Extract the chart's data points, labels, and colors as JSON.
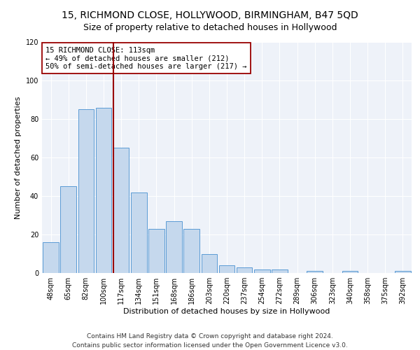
{
  "title": "15, RICHMOND CLOSE, HOLLYWOOD, BIRMINGHAM, B47 5QD",
  "subtitle": "Size of property relative to detached houses in Hollywood",
  "xlabel": "Distribution of detached houses by size in Hollywood",
  "ylabel": "Number of detached properties",
  "categories": [
    "48sqm",
    "65sqm",
    "82sqm",
    "100sqm",
    "117sqm",
    "134sqm",
    "151sqm",
    "168sqm",
    "186sqm",
    "203sqm",
    "220sqm",
    "237sqm",
    "254sqm",
    "272sqm",
    "289sqm",
    "306sqm",
    "323sqm",
    "340sqm",
    "358sqm",
    "375sqm",
    "392sqm"
  ],
  "values": [
    16,
    45,
    85,
    86,
    65,
    42,
    23,
    27,
    23,
    10,
    4,
    3,
    2,
    2,
    0,
    1,
    0,
    1,
    0,
    0,
    1
  ],
  "bar_color": "#c5d8ed",
  "bar_edge_color": "#5b9bd5",
  "red_line_index": 4,
  "annotation_line1": "15 RICHMOND CLOSE: 113sqm",
  "annotation_line2": "← 49% of detached houses are smaller (212)",
  "annotation_line3": "50% of semi-detached houses are larger (217) →",
  "footer_line1": "Contains HM Land Registry data © Crown copyright and database right 2024.",
  "footer_line2": "Contains public sector information licensed under the Open Government Licence v3.0.",
  "ylim": [
    0,
    120
  ],
  "yticks": [
    0,
    20,
    40,
    60,
    80,
    100,
    120
  ],
  "bg_color": "#eef2f9",
  "title_fontsize": 10,
  "subtitle_fontsize": 9,
  "axis_label_fontsize": 8,
  "tick_fontsize": 7,
  "annotation_fontsize": 7.5,
  "footer_fontsize": 6.5
}
